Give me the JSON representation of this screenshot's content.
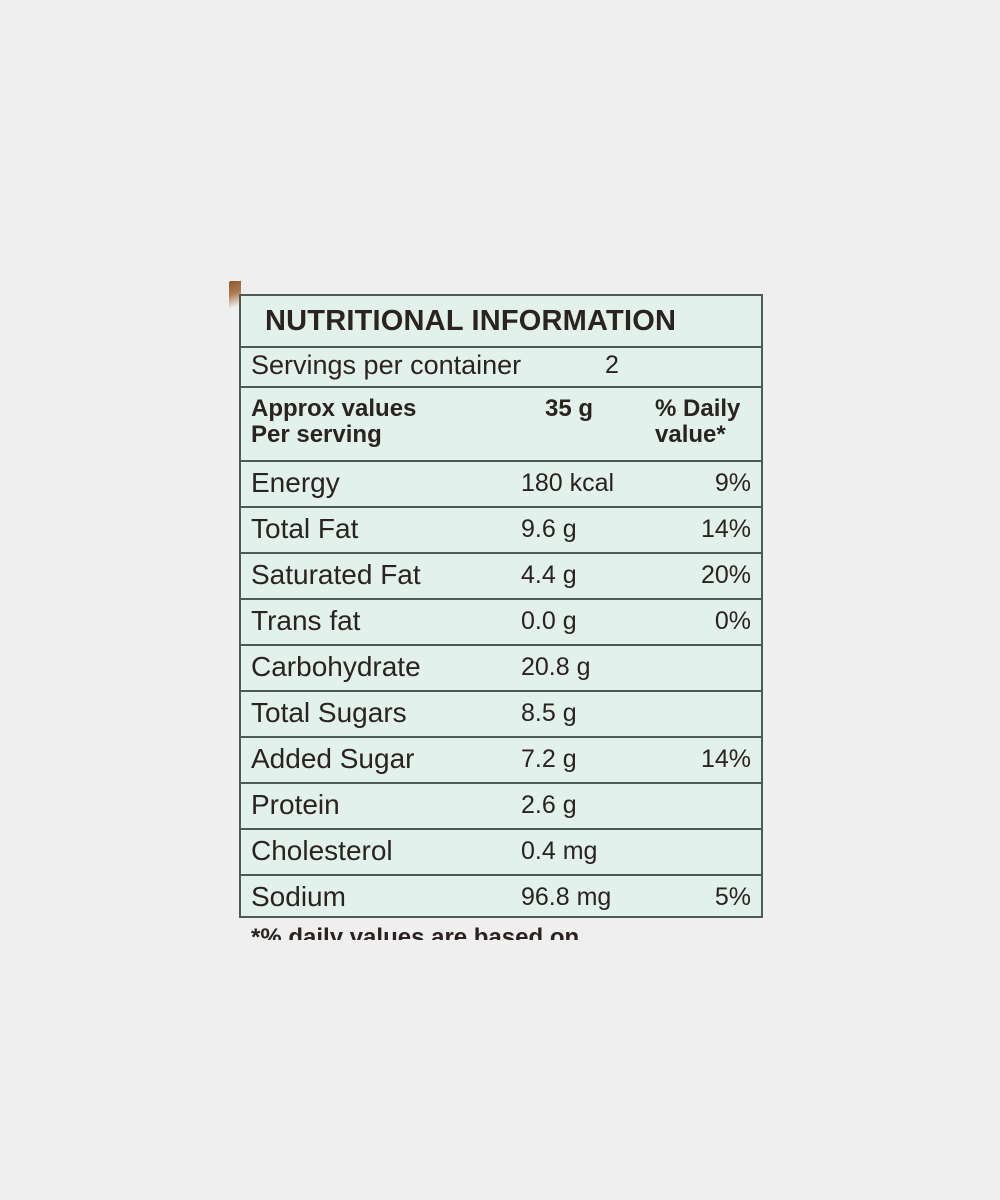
{
  "label": {
    "title": "NUTRITIONAL INFORMATION",
    "servings_label": "Servings per container",
    "servings_value": "2",
    "header": {
      "col1_line1": "Approx values",
      "col1_line2": "Per serving",
      "col2": "35 g",
      "col3_line1": "% Daily",
      "col3_line2": "value*"
    },
    "rows": [
      {
        "name": "Energy",
        "amount": "180 kcal",
        "dv": "9%"
      },
      {
        "name": "Total Fat",
        "amount": "9.6 g",
        "dv": "14%"
      },
      {
        "name": "Saturated Fat",
        "amount": "4.4 g",
        "dv": "20%"
      },
      {
        "name": "Trans fat",
        "amount": "0.0 g",
        "dv": "0%"
      },
      {
        "name": "Carbohydrate",
        "amount": "20.8 g",
        "dv": ""
      },
      {
        "name": "Total Sugars",
        "amount": "8.5 g",
        "dv": ""
      },
      {
        "name": "Added Sugar",
        "amount": "7.2 g",
        "dv": "14%"
      },
      {
        "name": "Protein",
        "amount": "2.6 g",
        "dv": ""
      },
      {
        "name": "Cholesterol",
        "amount": "0.4 mg",
        "dv": ""
      },
      {
        "name": "Sodium",
        "amount": "96.8 mg",
        "dv": "5%"
      }
    ],
    "footnote_partial": "*% daily values are based on"
  },
  "colors": {
    "background": "#efefef",
    "card": "#e3f1ec",
    "rule": "#4d5a55",
    "text": "#2a231f"
  }
}
